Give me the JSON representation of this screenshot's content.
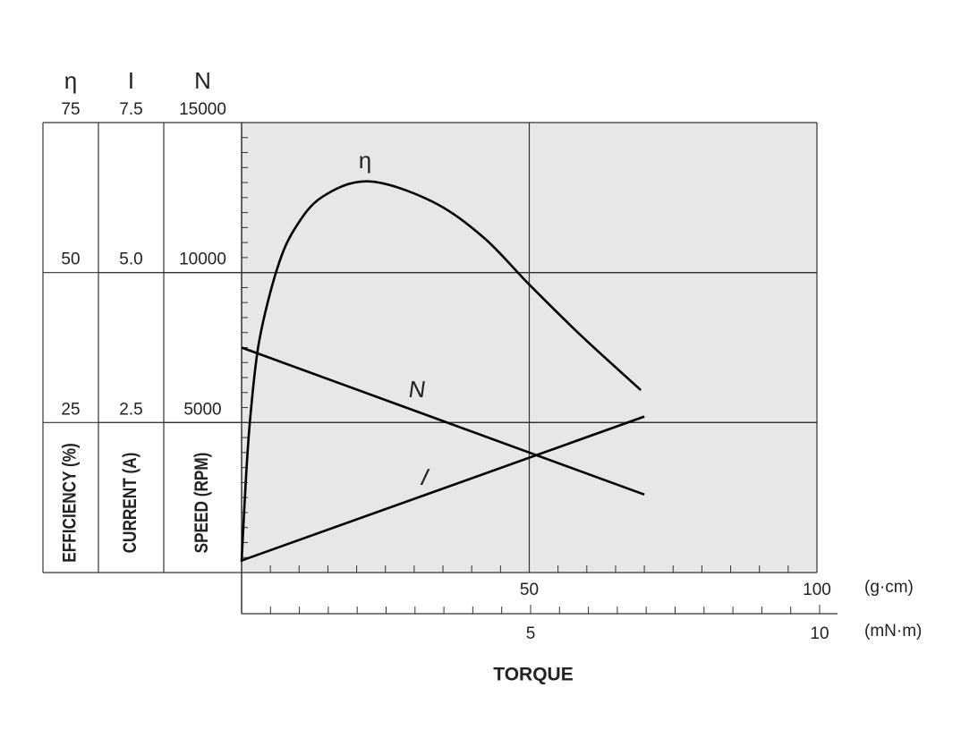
{
  "chart_data": {
    "type": "line",
    "x_label": "TORQUE",
    "x_unit": "(g·cm)",
    "xlim": [
      0,
      100
    ],
    "xticks": [
      50,
      100
    ],
    "x_minor_ticks": [
      5,
      10,
      15,
      20,
      25,
      30,
      35,
      40,
      45,
      55,
      60,
      65,
      70,
      75,
      80,
      85,
      90,
      95
    ],
    "x2_unit": "(mN·m)",
    "x2lim": [
      0,
      10
    ],
    "x2ticks": [
      5,
      10
    ],
    "x2_minor_ticks": [
      0.5,
      1,
      1.5,
      2,
      2.5,
      3,
      3.5,
      4,
      4.5,
      5.5,
      6,
      6.5,
      7,
      7.5,
      8,
      8.5,
      9,
      9.5
    ],
    "y_axes": [
      {
        "symbol": "η",
        "label": "EFFICIENCY (%)",
        "lim": [
          0,
          75
        ],
        "ticks": [
          25,
          50,
          75
        ]
      },
      {
        "symbol": "I",
        "label": "CURRENT (A)",
        "lim": [
          0,
          7.5
        ],
        "ticks": [
          2.5,
          {
            "value": 5,
            "label": "5.0"
          },
          7.5
        ]
      },
      {
        "symbol": "N",
        "label": "SPEED (RPM)",
        "lim": [
          0,
          15000
        ],
        "ticks": [
          5000,
          10000,
          15000
        ],
        "minor_ticks": [
          500,
          1000,
          1500,
          2000,
          2500,
          3000,
          3500,
          4000,
          4500,
          5500,
          6000,
          6500,
          7000,
          7500,
          8000,
          8500,
          9000,
          9500,
          10500,
          11000,
          11500,
          12000,
          12500,
          13000,
          13500,
          14000,
          14500
        ]
      }
    ],
    "grid": true,
    "series": [
      {
        "name": "η",
        "axis": 0,
        "color": "#000000",
        "x": [
          0,
          0.8,
          1.6,
          3.1,
          6.2,
          9.3,
          14,
          22,
          33,
          42,
          50,
          59,
          69.4
        ],
        "values": [
          1.8,
          16.4,
          26.8,
          38.8,
          50.7,
          57.4,
          62.6,
          65.2,
          61.9,
          55.9,
          48,
          39.5,
          30.4
        ]
      },
      {
        "name": "N",
        "axis": 2,
        "color": "#000000",
        "x": [
          0,
          70
        ],
        "values": [
          7500,
          2600
        ]
      },
      {
        "name": "I",
        "axis": 1,
        "color": "#000000",
        "x": [
          0,
          70
        ],
        "values": [
          0.2,
          2.6
        ]
      }
    ]
  }
}
